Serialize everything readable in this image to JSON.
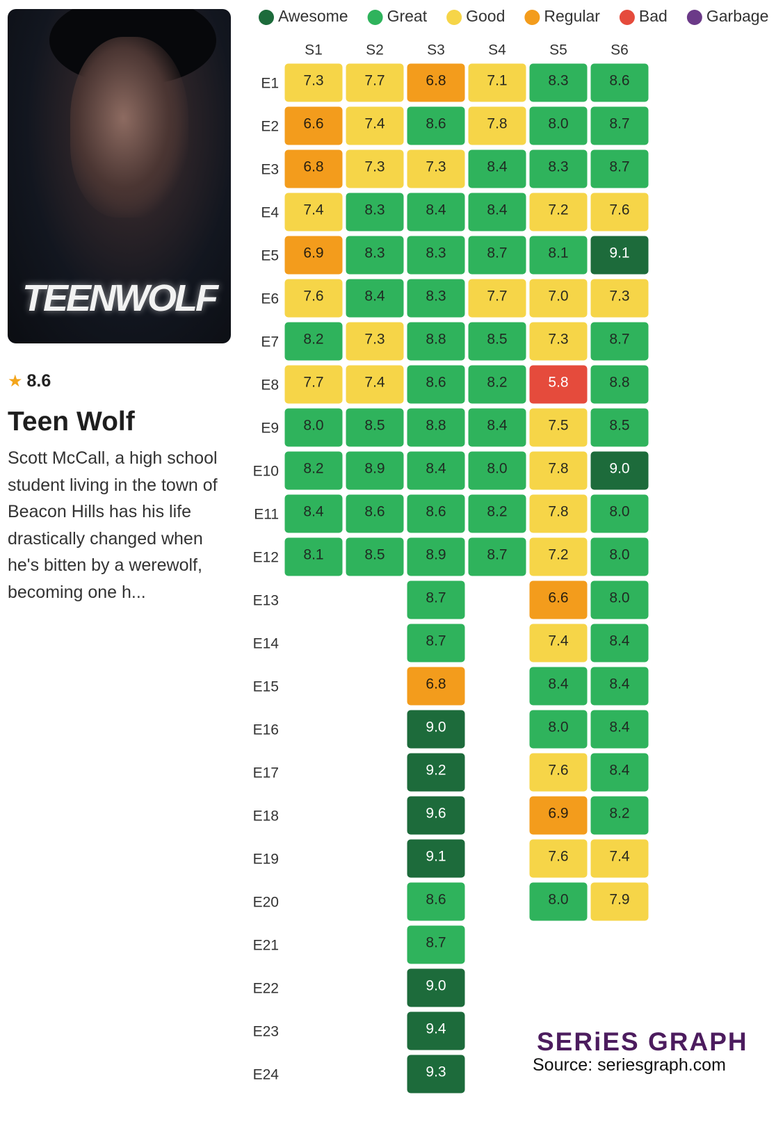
{
  "show": {
    "poster_text": "TEENWOLF",
    "rating": 8.6,
    "title": "Teen Wolf",
    "description": "Scott McCall, a high school student living in the town of Beacon Hills has his life drastically changed when he's bitten by a werewolf, becoming one h...",
    "brand": "SERiES GRAPH",
    "source": "Source: seriesgraph.com"
  },
  "chart_data": {
    "type": "heatmap",
    "legend": [
      {
        "name": "Awesome",
        "color": "#1d6b3b",
        "text": "#ffffff",
        "from": 9.0
      },
      {
        "name": "Great",
        "color": "#2fb35c",
        "text": "#1f2a22",
        "from": 8.0
      },
      {
        "name": "Good",
        "color": "#f6d548",
        "text": "#2a2a1f",
        "from": 7.0
      },
      {
        "name": "Regular",
        "color": "#f39c1c",
        "text": "#2a2010",
        "from": 6.0
      },
      {
        "name": "Bad",
        "color": "#e54b3c",
        "text": "#ffffff",
        "from": 5.0
      },
      {
        "name": "Garbage",
        "color": "#6b3a88",
        "text": "#ffffff",
        "from": 0
      }
    ],
    "categories": [
      "E1",
      "E2",
      "E3",
      "E4",
      "E5",
      "E6",
      "E7",
      "E8",
      "E9",
      "E10",
      "E11",
      "E12",
      "E13",
      "E14",
      "E15",
      "E16",
      "E17",
      "E18",
      "E19",
      "E20",
      "E21",
      "E22",
      "E23",
      "E24"
    ],
    "series": [
      {
        "name": "S1",
        "values": [
          7.3,
          6.6,
          6.8,
          7.4,
          6.9,
          7.6,
          8.2,
          7.7,
          8.0,
          8.2,
          8.4,
          8.1,
          null,
          null,
          null,
          null,
          null,
          null,
          null,
          null,
          null,
          null,
          null,
          null
        ],
        "value_labels": [
          "7.3",
          "6.6",
          "6.8",
          "7.4",
          "6.9",
          "7.6",
          "8.2",
          "7.7",
          "8.0",
          "8.2",
          "8.4",
          "8.1",
          null,
          null,
          null,
          null,
          null,
          null,
          null,
          null,
          null,
          null,
          null,
          null
        ]
      },
      {
        "name": "S2",
        "values": [
          7.7,
          7.4,
          7.3,
          8.3,
          8.3,
          8.4,
          7.3,
          7.4,
          8.5,
          8.9,
          8.6,
          8.5,
          null,
          null,
          null,
          null,
          null,
          null,
          null,
          null,
          null,
          null,
          null,
          null
        ],
        "value_labels": [
          "7.7",
          "7.4",
          "7.3",
          "8.3",
          "8.3",
          "8.4",
          "7.3",
          "7.4",
          "8.5",
          "8.9",
          "8.6",
          "8.5",
          null,
          null,
          null,
          null,
          null,
          null,
          null,
          null,
          null,
          null,
          null,
          null
        ]
      },
      {
        "name": "S3",
        "values": [
          6.8,
          8.6,
          7.3,
          8.4,
          8.3,
          8.3,
          8.8,
          8.6,
          8.8,
          8.4,
          8.6,
          8.9,
          8.7,
          8.7,
          6.8,
          9.0,
          9.2,
          9.6,
          9.1,
          8.6,
          8.7,
          9.0,
          9.4,
          9.3
        ],
        "value_labels": [
          "6.8",
          "8.6",
          "7.3",
          "8.4",
          "8.3",
          "8.3",
          "8.8",
          "8.6",
          "8.8",
          "8.4",
          "8.6",
          "8.9",
          "8.7",
          "8.7",
          "6.8",
          "9.0",
          "9.2",
          "9.6",
          "9.1",
          "8.6",
          "8.7",
          "9.0",
          "9.4",
          "9.3"
        ]
      },
      {
        "name": "S4",
        "values": [
          7.1,
          7.8,
          8.4,
          8.4,
          8.7,
          7.7,
          8.5,
          8.2,
          8.4,
          8.0,
          8.2,
          8.7,
          null,
          null,
          null,
          null,
          null,
          null,
          null,
          null,
          null,
          null,
          null,
          null
        ],
        "value_labels": [
          "7.1",
          "7.8",
          "8.4",
          "8.4",
          "8.7",
          "7.7",
          "8.5",
          "8.2",
          "8.4",
          "8.0",
          "8.2",
          "8.7",
          null,
          null,
          null,
          null,
          null,
          null,
          null,
          null,
          null,
          null,
          null,
          null
        ]
      },
      {
        "name": "S5",
        "values": [
          8.3,
          8.0,
          8.3,
          7.2,
          8.1,
          7.0,
          7.3,
          5.8,
          7.5,
          7.8,
          7.8,
          7.2,
          6.6,
          7.4,
          8.4,
          8.0,
          7.6,
          6.9,
          7.6,
          8.0,
          null,
          null,
          null,
          null
        ],
        "value_labels": [
          "8.3",
          "8.0",
          "8.3",
          "7.2",
          "8.1",
          "7.0",
          "7.3",
          "5.8",
          "7.5",
          "7.8",
          "7.8",
          "7.2",
          "6.6",
          "7.4",
          "8.4",
          "8.0",
          "7.6",
          "6.9",
          "7.6",
          "8.0",
          null,
          null,
          null,
          null
        ]
      },
      {
        "name": "S6",
        "values": [
          8.6,
          8.7,
          8.7,
          7.6,
          9.1,
          7.3,
          8.7,
          8.8,
          8.5,
          9.0,
          8.0,
          8.0,
          8.0,
          8.4,
          8.4,
          8.4,
          8.4,
          8.2,
          7.4,
          7.9,
          null,
          null,
          null,
          null
        ],
        "value_labels": [
          "8.6",
          "8.7",
          "8.7",
          "7.6",
          "9.1",
          "7.3",
          "8.7",
          "8.8",
          "8.5",
          "9.0",
          "8.0",
          "8.0",
          "8.0",
          "8.4",
          "8.4",
          "8.4",
          "8.4",
          "8.2",
          "7.4",
          "7.9",
          null,
          null,
          null,
          null
        ]
      }
    ]
  }
}
